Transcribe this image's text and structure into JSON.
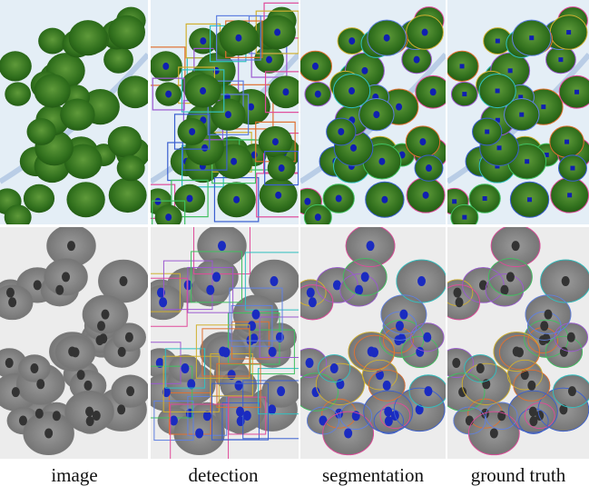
{
  "captions": [
    "image",
    "detection",
    "segmentation",
    "ground truth"
  ]
}
